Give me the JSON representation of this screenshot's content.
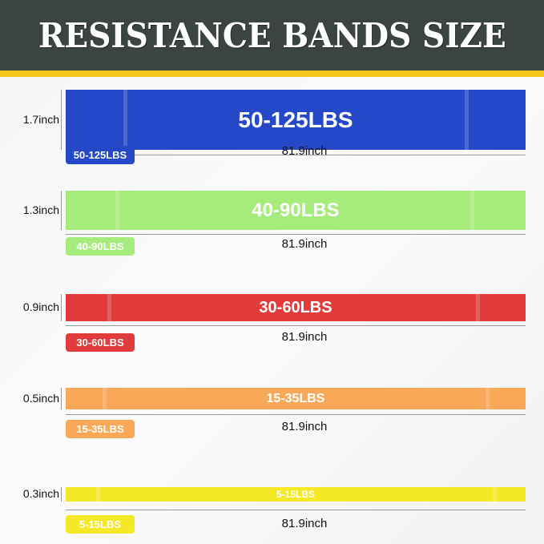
{
  "title": "RESISTANCE BANDS SIZE",
  "bands": [
    {
      "label": "50-125LBS",
      "width": "1.7inch",
      "length": "81.9inch",
      "color": "#2448c8"
    },
    {
      "label": "40-90LBS",
      "width": "1.3inch",
      "length": "81.9inch",
      "color": "#a6ec7c"
    },
    {
      "label": "30-60LBS",
      "width": "0.9inch",
      "length": "81.9inch",
      "color": "#e23b3b"
    },
    {
      "label": "15-35LBS",
      "width": "0.5inch",
      "length": "81.9inch",
      "color": "#f9a857"
    },
    {
      "label": "5-15LBS",
      "width": "0.3inch",
      "length": "81.9inch",
      "color": "#f5e826"
    }
  ]
}
